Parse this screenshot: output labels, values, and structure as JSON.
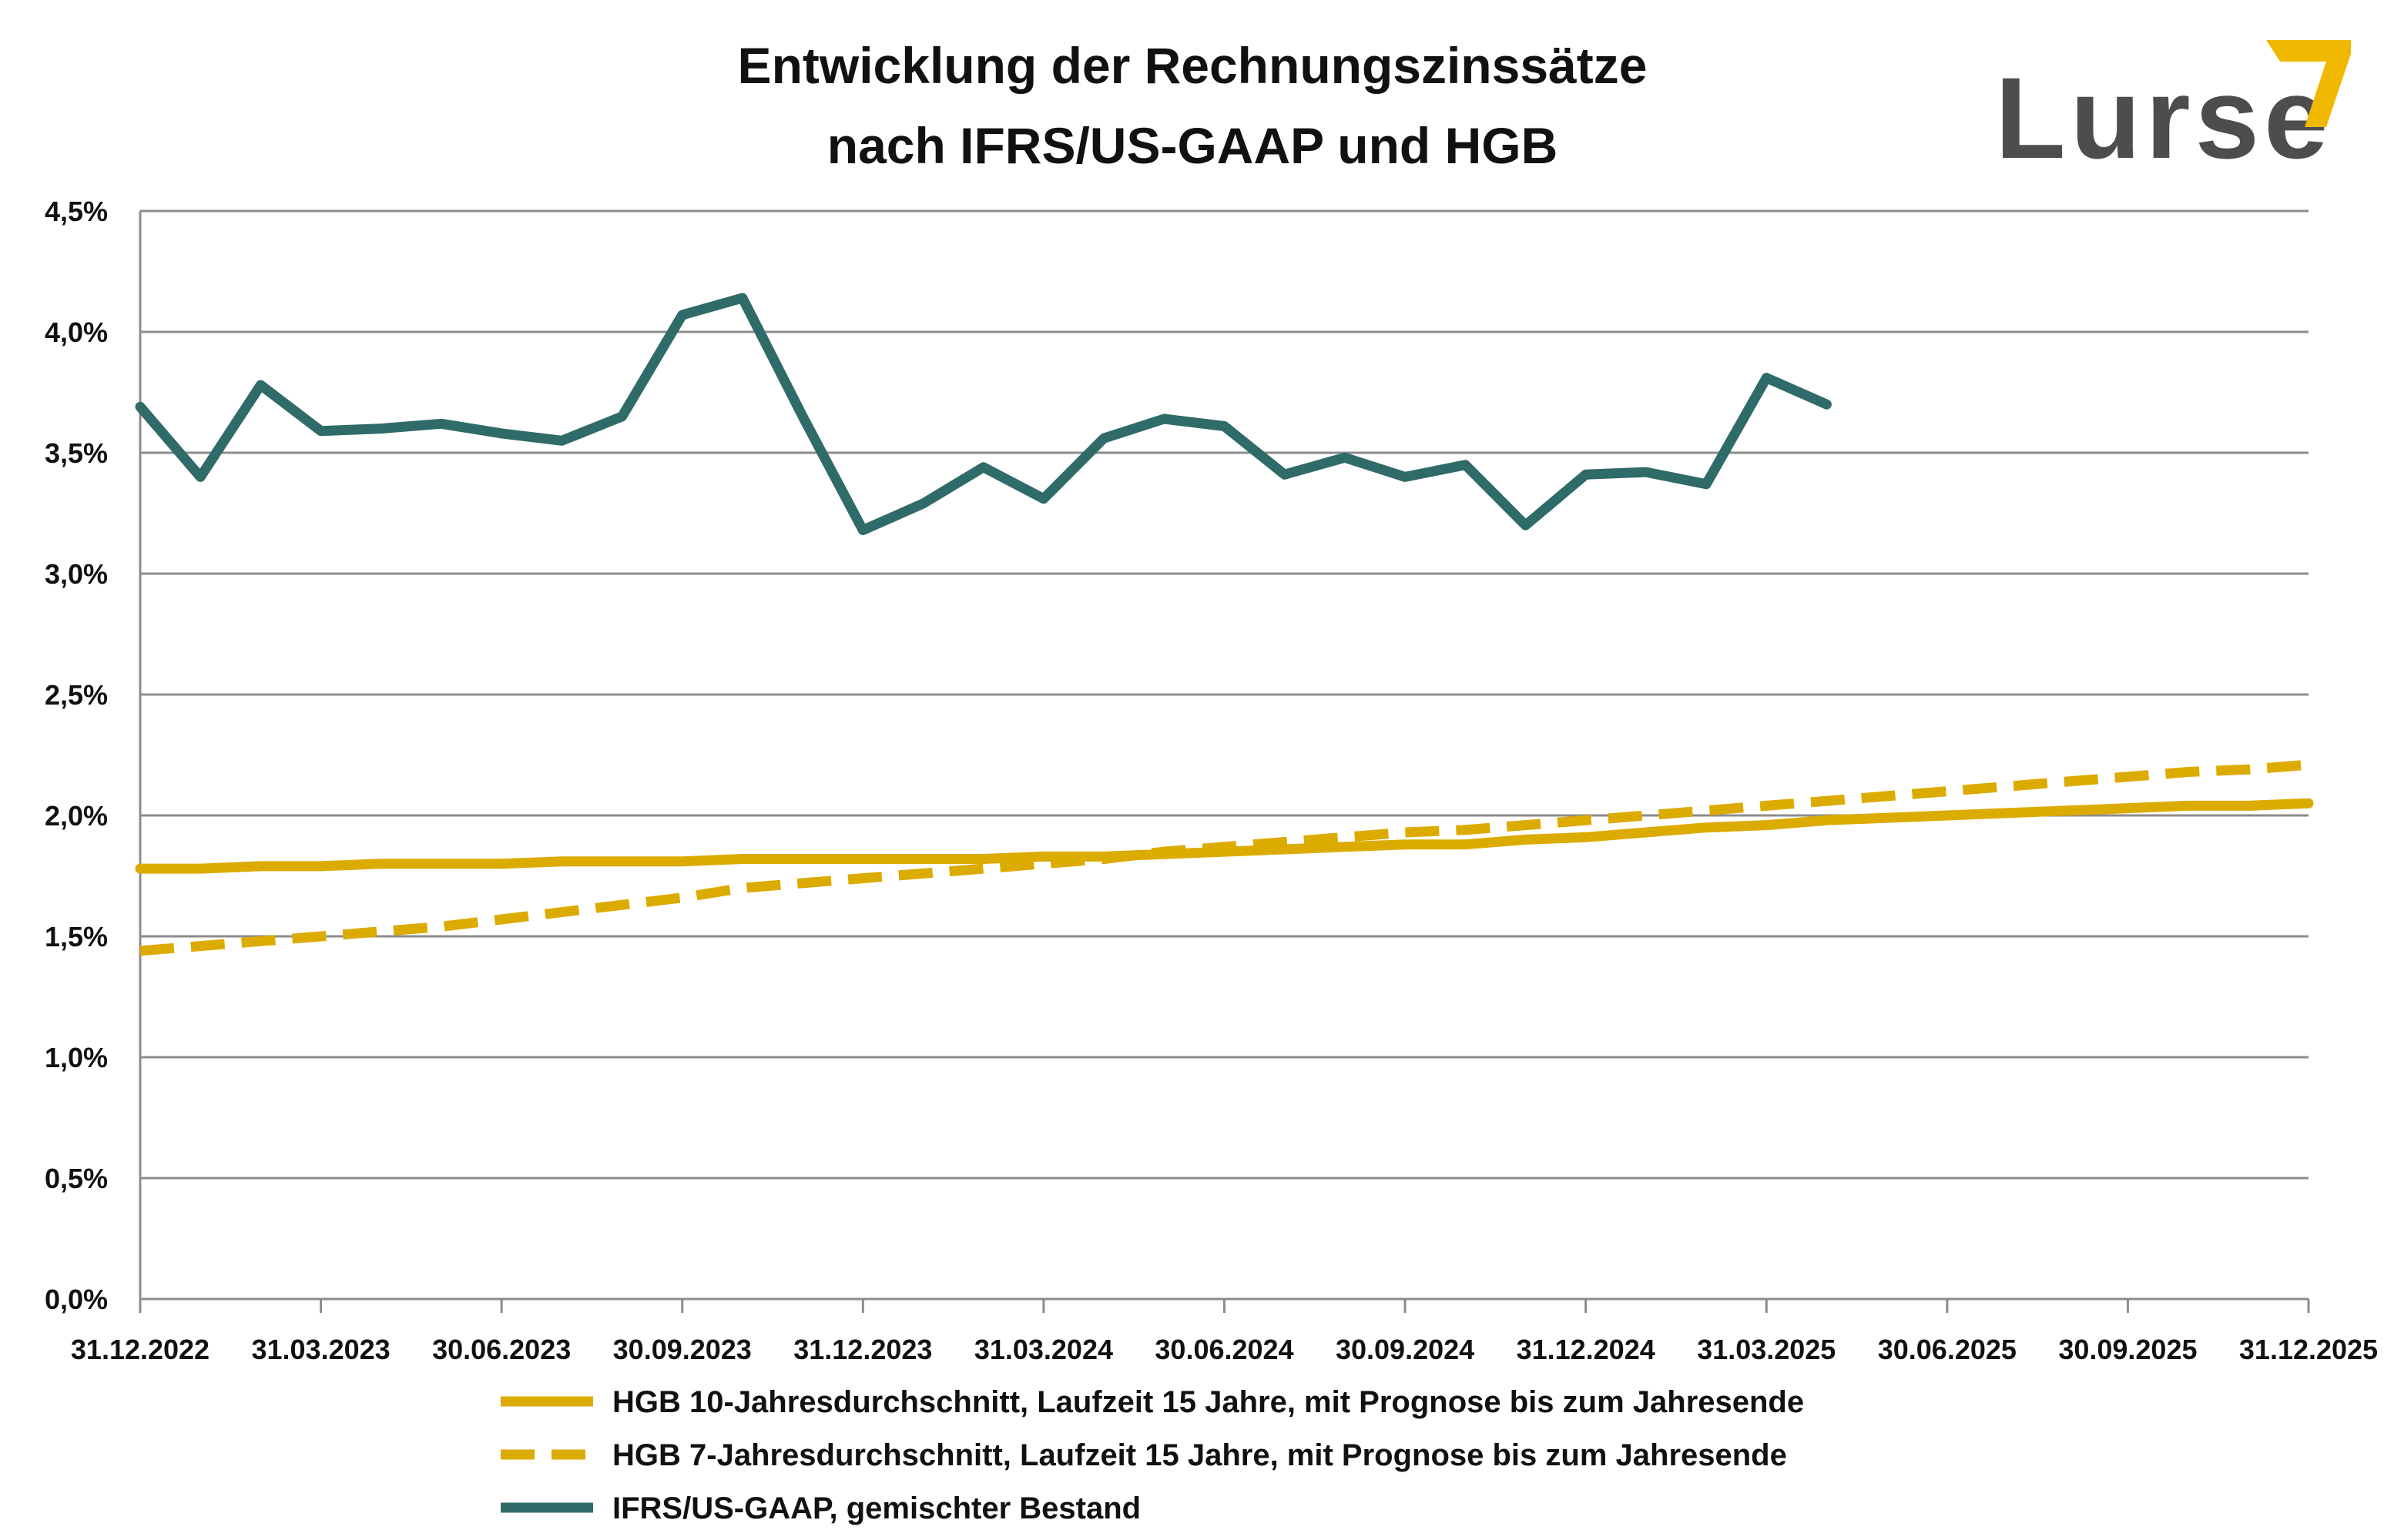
{
  "chart_data": {
    "type": "line",
    "title": [
      "Entwicklung der Rechnungszinssätze",
      "nach IFRS/US-GAAP und HGB"
    ],
    "xlabel": "",
    "ylabel": "",
    "ylim": [
      0,
      4.5
    ],
    "yticks": [
      "0,0%",
      "0,5%",
      "1,0%",
      "1,5%",
      "2,0%",
      "2,5%",
      "3,0%",
      "3,5%",
      "4,0%",
      "4,5%"
    ],
    "x_months_total": 36,
    "xticks": [
      "31.12.2022",
      "31.03.2023",
      "30.06.2023",
      "30.09.2023",
      "31.12.2023",
      "31.03.2024",
      "30.06.2024",
      "30.09.2024",
      "31.12.2024",
      "31.03.2025",
      "30.06.2025",
      "30.09.2025",
      "31.12.2025"
    ],
    "grid": true,
    "series": [
      {
        "name": "HGB 10-Jahresdurchschnitt, Laufzeit 15 Jahre, mit Prognose bis zum Jahresende",
        "color": "#dcab00",
        "dash": false,
        "values": [
          1.78,
          1.78,
          1.79,
          1.79,
          1.8,
          1.8,
          1.8,
          1.81,
          1.81,
          1.81,
          1.82,
          1.82,
          1.82,
          1.82,
          1.82,
          1.83,
          1.83,
          1.84,
          1.85,
          1.86,
          1.87,
          1.88,
          1.88,
          1.9,
          1.91,
          1.93,
          1.95,
          1.96,
          1.98,
          1.99,
          2.0,
          2.01,
          2.02,
          2.03,
          2.04,
          2.04,
          2.05
        ]
      },
      {
        "name": "HGB 7-Jahresdurchschnitt, Laufzeit 15 Jahre, mit Prognose bis zum Jahresende",
        "color": "#dcab00",
        "dash": true,
        "values": [
          1.44,
          1.46,
          1.48,
          1.5,
          1.52,
          1.54,
          1.57,
          1.6,
          1.63,
          1.66,
          1.7,
          1.72,
          1.74,
          1.76,
          1.78,
          1.8,
          1.82,
          1.85,
          1.87,
          1.89,
          1.91,
          1.93,
          1.94,
          1.96,
          1.98,
          2.0,
          2.02,
          2.04,
          2.06,
          2.08,
          2.1,
          2.12,
          2.14,
          2.16,
          2.18,
          2.19,
          2.21
        ]
      },
      {
        "name": "IFRS/US-GAAP, gemischter Bestand",
        "color": "#2f6b68",
        "dash": false,
        "values": [
          3.69,
          3.4,
          3.78,
          3.59,
          3.6,
          3.62,
          3.58,
          3.55,
          3.65,
          4.07,
          4.14,
          3.65,
          3.18,
          3.29,
          3.44,
          3.31,
          3.56,
          3.64,
          3.61,
          3.41,
          3.48,
          3.4,
          3.45,
          3.2,
          3.41,
          3.42,
          3.37,
          3.81,
          3.7
        ]
      }
    ]
  },
  "logo": {
    "text": "Lurse",
    "text_color": "#4d4d4f",
    "accent_color": "#f0b800"
  }
}
